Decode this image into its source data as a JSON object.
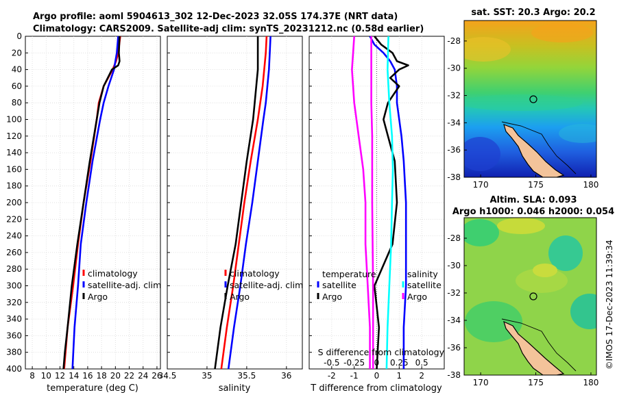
{
  "titles": {
    "line1": "Argo profile: aoml 5904613_302 12-Dec-2023 32.05S 174.37E (NRT data)",
    "line2": "Climatology: CARS2009. Satellite-adj clim: synTS_20231212.nc (0.58d earlier)",
    "sst_title": "sat. SST: 20.3 Argo: 20.2",
    "sla_title1": "Altim. SLA: 0.093",
    "sla_title2": "Argo h1000: 0.046 h2000: 0.054",
    "stamp": "©IMOS 17-Dec-2023 11:39:34"
  },
  "colors": {
    "climatology": "#ff0000",
    "satellite": "#0000ff",
    "argo": "#000000",
    "temp_clim_diff": "#ff00ff",
    "sal_sat_diff": "#00ffff"
  },
  "depth_ticks": [
    "0",
    "20",
    "40",
    "60",
    "80",
    "100",
    "120",
    "140",
    "160",
    "180",
    "200",
    "220",
    "240",
    "260",
    "280",
    "300",
    "320",
    "340",
    "360",
    "380",
    "400"
  ],
  "chart_data": [
    {
      "type": "line",
      "name": "temperature",
      "xlabel": "temperature (deg C)",
      "ylabel": "depth",
      "xlim": [
        7,
        26.5
      ],
      "ylim": [
        400,
        0
      ],
      "xticks": [
        "8",
        "10",
        "12",
        "14",
        "16",
        "18",
        "20",
        "22",
        "24",
        "26"
      ],
      "legend": [
        "climatology",
        "satellite-adj. clim",
        "Argo"
      ],
      "series": [
        {
          "name": "climatology",
          "color": "#ff0000",
          "depth": [
            0,
            20,
            30,
            40,
            60,
            80,
            100,
            150,
            200,
            250,
            300,
            350,
            400
          ],
          "values": [
            20.7,
            20.4,
            20.1,
            19.6,
            18.3,
            17.6,
            17.3,
            16.4,
            15.4,
            14.6,
            13.9,
            13.1,
            12.6
          ]
        },
        {
          "name": "satellite-adj. clim",
          "color": "#0000ff",
          "depth": [
            0,
            20,
            30,
            40,
            60,
            80,
            100,
            150,
            200,
            250,
            300,
            350,
            400
          ],
          "values": [
            20.4,
            20.2,
            20.0,
            19.8,
            19.0,
            18.3,
            17.8,
            16.7,
            15.8,
            15.0,
            14.6,
            14.1,
            13.8
          ]
        },
        {
          "name": "Argo",
          "color": "#000000",
          "depth": [
            0,
            20,
            30,
            35,
            40,
            60,
            80,
            100,
            150,
            200,
            250,
            300,
            350,
            380,
            400
          ],
          "values": [
            20.6,
            20.5,
            20.6,
            20.4,
            19.5,
            18.3,
            17.7,
            17.3,
            16.3,
            15.4,
            14.5,
            13.7,
            13.1,
            12.7,
            12.5
          ]
        }
      ]
    },
    {
      "type": "line",
      "name": "salinity",
      "xlabel": "salinity",
      "ylabel": "depth",
      "xlim": [
        34.5,
        36.2
      ],
      "ylim": [
        400,
        0
      ],
      "xticks": [
        "34.5",
        "35",
        "35.5",
        "36"
      ],
      "legend": [
        "climatology",
        "satellite-adj. clim",
        "Argo"
      ],
      "series": [
        {
          "name": "climatology",
          "color": "#ff0000",
          "depth": [
            0,
            20,
            40,
            60,
            80,
            100,
            150,
            200,
            250,
            300,
            350,
            400
          ],
          "values": [
            35.75,
            35.74,
            35.72,
            35.7,
            35.67,
            35.64,
            35.55,
            35.47,
            35.4,
            35.33,
            35.25,
            35.18
          ]
        },
        {
          "name": "satellite-adj. clim",
          "color": "#0000ff",
          "depth": [
            0,
            20,
            40,
            60,
            80,
            100,
            150,
            200,
            250,
            300,
            350,
            400
          ],
          "values": [
            35.8,
            35.79,
            35.78,
            35.76,
            35.74,
            35.71,
            35.64,
            35.57,
            35.49,
            35.42,
            35.34,
            35.27
          ]
        },
        {
          "name": "Argo",
          "color": "#000000",
          "depth": [
            0,
            20,
            40,
            60,
            80,
            100,
            150,
            200,
            250,
            300,
            350,
            400
          ],
          "values": [
            35.64,
            35.64,
            35.64,
            35.62,
            35.6,
            35.58,
            35.5,
            35.43,
            35.36,
            35.26,
            35.17,
            35.1
          ]
        }
      ]
    },
    {
      "type": "line",
      "name": "difference from climatology",
      "xlabel": "T difference from climatology",
      "x2label": "S difference from climatology",
      "ylabel": "depth",
      "xlim": [
        -3,
        3
      ],
      "x2lim": [
        -0.75,
        0.75
      ],
      "ylim": [
        400,
        0
      ],
      "xticks": [
        "-2",
        "-1",
        "0",
        "1",
        "2"
      ],
      "x2ticks": [
        "-0.5",
        "-0.25",
        "0",
        "0.25",
        "0.5"
      ],
      "legend_left_title": "temperature",
      "legend_right_title": "salinity",
      "legend_left": [
        "satellite",
        "Argo"
      ],
      "legend_right": [
        "satellite",
        "Argo"
      ],
      "series": [
        {
          "name": "temperature satellite",
          "color": "#0000ff",
          "depth": [
            0,
            10,
            20,
            30,
            40,
            60,
            80,
            100,
            120,
            150,
            200,
            250,
            300,
            350,
            400
          ],
          "values": [
            -0.3,
            -0.1,
            0.3,
            0.6,
            0.8,
            0.9,
            0.9,
            1.0,
            1.1,
            1.2,
            1.3,
            1.3,
            1.3,
            1.2,
            1.2
          ]
        },
        {
          "name": "temperature Argo",
          "color": "#000000",
          "depth": [
            0,
            10,
            20,
            30,
            35,
            40,
            50,
            60,
            80,
            100,
            120,
            150,
            200,
            250,
            300,
            350,
            400
          ],
          "values": [
            -0.1,
            0.2,
            0.7,
            0.9,
            1.4,
            1.0,
            0.6,
            1.0,
            0.5,
            0.3,
            0.5,
            0.8,
            0.9,
            0.7,
            -0.1,
            0.1,
            0.0
          ]
        },
        {
          "name": "temperature climatology",
          "color": "#ff00ff",
          "depth": [
            0,
            40,
            80,
            120,
            160,
            200,
            250,
            300,
            350,
            400
          ],
          "values": [
            -1.0,
            -1.1,
            -1.0,
            -0.8,
            -0.6,
            -0.5,
            -0.5,
            -0.4,
            -0.3,
            -0.3
          ]
        },
        {
          "name": "salinity satellite",
          "color": "#00ffff",
          "depth": [
            0,
            40,
            80,
            120,
            160,
            200,
            250,
            300,
            350,
            400
          ],
          "values": [
            0.13,
            0.12,
            0.14,
            0.17,
            0.18,
            0.17,
            0.16,
            0.14,
            0.12,
            0.11
          ]
        },
        {
          "name": "salinity Argo",
          "color": "#ff00ff",
          "depth": [
            0,
            40,
            80,
            120,
            200,
            300,
            400
          ],
          "values": [
            -0.06,
            -0.06,
            -0.06,
            -0.05,
            -0.05,
            -0.04,
            -0.04
          ]
        }
      ]
    },
    {
      "type": "heatmap",
      "name": "satellite SST map",
      "title": "sat. SST: 20.3 Argo: 20.2",
      "xlim": [
        168.5,
        180.5
      ],
      "ylim": [
        -38,
        -26.5
      ],
      "xticks": [
        "170",
        "175",
        "180"
      ],
      "yticks": [
        "-28",
        "-30",
        "-32",
        "-34",
        "-36",
        "-38"
      ],
      "marker": {
        "lon": 174.37,
        "lat": -32.05
      }
    },
    {
      "type": "heatmap",
      "name": "altimetry SLA map",
      "title": "Altim. SLA: 0.093",
      "xlim": [
        168.5,
        180.5
      ],
      "ylim": [
        -38,
        -26.5
      ],
      "xticks": [
        "170",
        "175",
        "180"
      ],
      "yticks": [
        "-28",
        "-30",
        "-32",
        "-34",
        "-36",
        "-38"
      ],
      "marker": {
        "lon": 174.37,
        "lat": -32.05
      }
    }
  ]
}
